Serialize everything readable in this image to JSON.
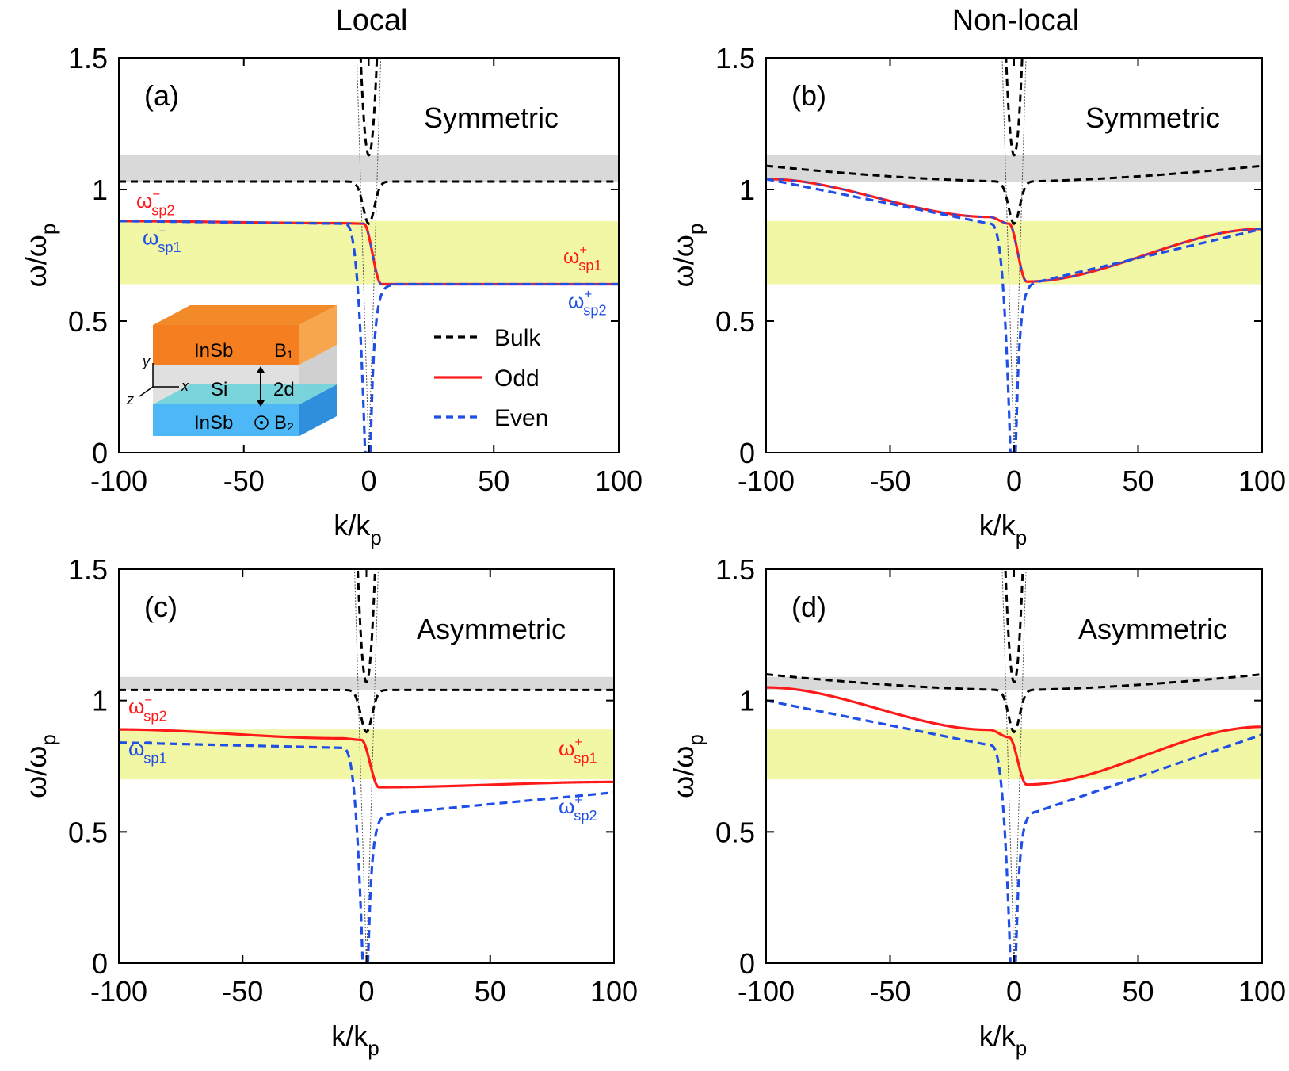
{
  "column_titles": [
    "Local",
    "Non-local"
  ],
  "legend": {
    "bulk": "Bulk",
    "odd": "Odd",
    "even": "Even"
  },
  "inset": {
    "top_layer": "InSb",
    "top_field": "B₁",
    "middle_layer": "Si",
    "gap": "2d",
    "bottom_layer": "InSb",
    "bottom_field": "B₂",
    "axis_x": "x",
    "axis_y": "y",
    "axis_z": "z"
  },
  "colors": {
    "bulk": "#000000",
    "odd": "#ff1a1a",
    "even": "#1f4fe6",
    "gray_band": "#d9d9d9",
    "yellow_band": "#f2f7a6"
  },
  "chart_data": [
    {
      "type": "line",
      "panel_label": "(a)",
      "title": "Symmetric",
      "xlabel": "k/k",
      "xlabel_sub": "p",
      "ylabel": "ω/ω",
      "ylabel_sub": "p",
      "xlim": [
        -100,
        100
      ],
      "ylim": [
        0,
        1.5
      ],
      "xticks": [
        -100,
        -50,
        0,
        50,
        100
      ],
      "yticks": [
        0,
        0.5,
        1,
        1.5
      ],
      "bands": [
        {
          "y": [
            1.03,
            1.13
          ],
          "color": "gray"
        },
        {
          "y": [
            0.64,
            0.88
          ],
          "color": "yellow"
        }
      ],
      "bulk_line": {
        "left": 1.03,
        "right": 1.03,
        "slope": 0.0
      },
      "cone_min": 1.13,
      "series": [
        {
          "name": "Odd",
          "curvature": 0.0,
          "values": {
            "left": 0.88,
            "kink": 0.87,
            "min": 0.64,
            "right": 0.64
          }
        },
        {
          "name": "Even",
          "curvature": 0.0,
          "values": {
            "left": 0.88,
            "kink": 0.87,
            "min": 0.64,
            "right": 0.64
          }
        }
      ],
      "mode_labels": [
        {
          "main": "ω",
          "sub": "sp2",
          "sup": "−",
          "color": "odd"
        },
        {
          "main": "ω",
          "sub": "sp1",
          "sup": "−",
          "color": "even"
        },
        {
          "main": "ω",
          "sub": "sp1",
          "sup": "+",
          "color": "odd"
        },
        {
          "main": "ω",
          "sub": "sp2",
          "sup": "+",
          "color": "even"
        }
      ]
    },
    {
      "type": "line",
      "panel_label": "(b)",
      "title": "Symmetric",
      "xlabel": "k/k",
      "xlabel_sub": "p",
      "ylabel": "ω/ω",
      "ylabel_sub": "p",
      "xlim": [
        -100,
        100
      ],
      "ylim": [
        0,
        1.5
      ],
      "xticks": [
        -100,
        -50,
        0,
        50,
        100
      ],
      "yticks": [
        0,
        0.5,
        1,
        1.5
      ],
      "bands": [
        {
          "y": [
            1.03,
            1.13
          ],
          "color": "gray"
        },
        {
          "y": [
            0.64,
            0.88
          ],
          "color": "yellow"
        }
      ],
      "bulk_line": {
        "left": 1.09,
        "right": 1.09,
        "slope": 0.0
      },
      "cone_min": 1.13,
      "series": [
        {
          "name": "Odd",
          "curvature": 0.0,
          "values": {
            "left": 1.04,
            "kink": 0.87,
            "min": 0.65,
            "right": 0.85
          }
        },
        {
          "name": "Even",
          "curvature": 0.0,
          "values": {
            "left": 1.04,
            "kink": 0.87,
            "min": 0.65,
            "right": 0.85
          }
        }
      ],
      "mode_labels": []
    },
    {
      "type": "line",
      "panel_label": "(c)",
      "title": "Asymmetric",
      "xlabel": "k/k",
      "xlabel_sub": "p",
      "ylabel": "ω/ω",
      "ylabel_sub": "p",
      "xlim": [
        -100,
        100
      ],
      "ylim": [
        0,
        1.5
      ],
      "xticks": [
        -100,
        -50,
        0,
        50,
        100
      ],
      "yticks": [
        0,
        0.5,
        1,
        1.5
      ],
      "bands": [
        {
          "y": [
            1.04,
            1.09
          ],
          "color": "gray"
        },
        {
          "y": [
            0.7,
            0.89
          ],
          "color": "yellow"
        }
      ],
      "bulk_line": {
        "left": 1.04,
        "right": 1.04,
        "slope": 0.0
      },
      "cone_min": 1.07,
      "series": [
        {
          "name": "Odd",
          "curvature": 0.0,
          "values": {
            "left": 0.89,
            "kink": 0.85,
            "min": 0.67,
            "right": 0.69
          }
        },
        {
          "name": "Even",
          "curvature": 0.0,
          "values": {
            "left": 0.84,
            "kink": 0.82,
            "min": 0.57,
            "right": 0.65
          }
        }
      ],
      "mode_labels": [
        {
          "main": "ω",
          "sub": "sp2",
          "sup": "−",
          "color": "odd"
        },
        {
          "main": "ω",
          "sub": "sp1",
          "sup": "−",
          "color": "even"
        },
        {
          "main": "ω",
          "sub": "sp1",
          "sup": "+",
          "color": "odd"
        },
        {
          "main": "ω",
          "sub": "sp2",
          "sup": "+",
          "color": "even"
        }
      ]
    },
    {
      "type": "line",
      "panel_label": "(d)",
      "title": "Asymmetric",
      "xlabel": "k/k",
      "xlabel_sub": "p",
      "ylabel": "ω/ω",
      "ylabel_sub": "p",
      "xlim": [
        -100,
        100
      ],
      "ylim": [
        0,
        1.5
      ],
      "xticks": [
        -100,
        -50,
        0,
        50,
        100
      ],
      "yticks": [
        0,
        0.5,
        1,
        1.5
      ],
      "bands": [
        {
          "y": [
            1.04,
            1.09
          ],
          "color": "gray"
        },
        {
          "y": [
            0.7,
            0.89
          ],
          "color": "yellow"
        }
      ],
      "bulk_line": {
        "left": 1.1,
        "right": 1.1,
        "slope": 0.0
      },
      "cone_min": 1.07,
      "series": [
        {
          "name": "Odd",
          "curvature": 0.0,
          "values": {
            "left": 1.05,
            "kink": 0.86,
            "min": 0.68,
            "right": 0.9
          }
        },
        {
          "name": "Even",
          "curvature": 0.0,
          "values": {
            "left": 1.0,
            "kink": 0.83,
            "min": 0.58,
            "right": 0.87
          }
        }
      ],
      "mode_labels": []
    }
  ]
}
